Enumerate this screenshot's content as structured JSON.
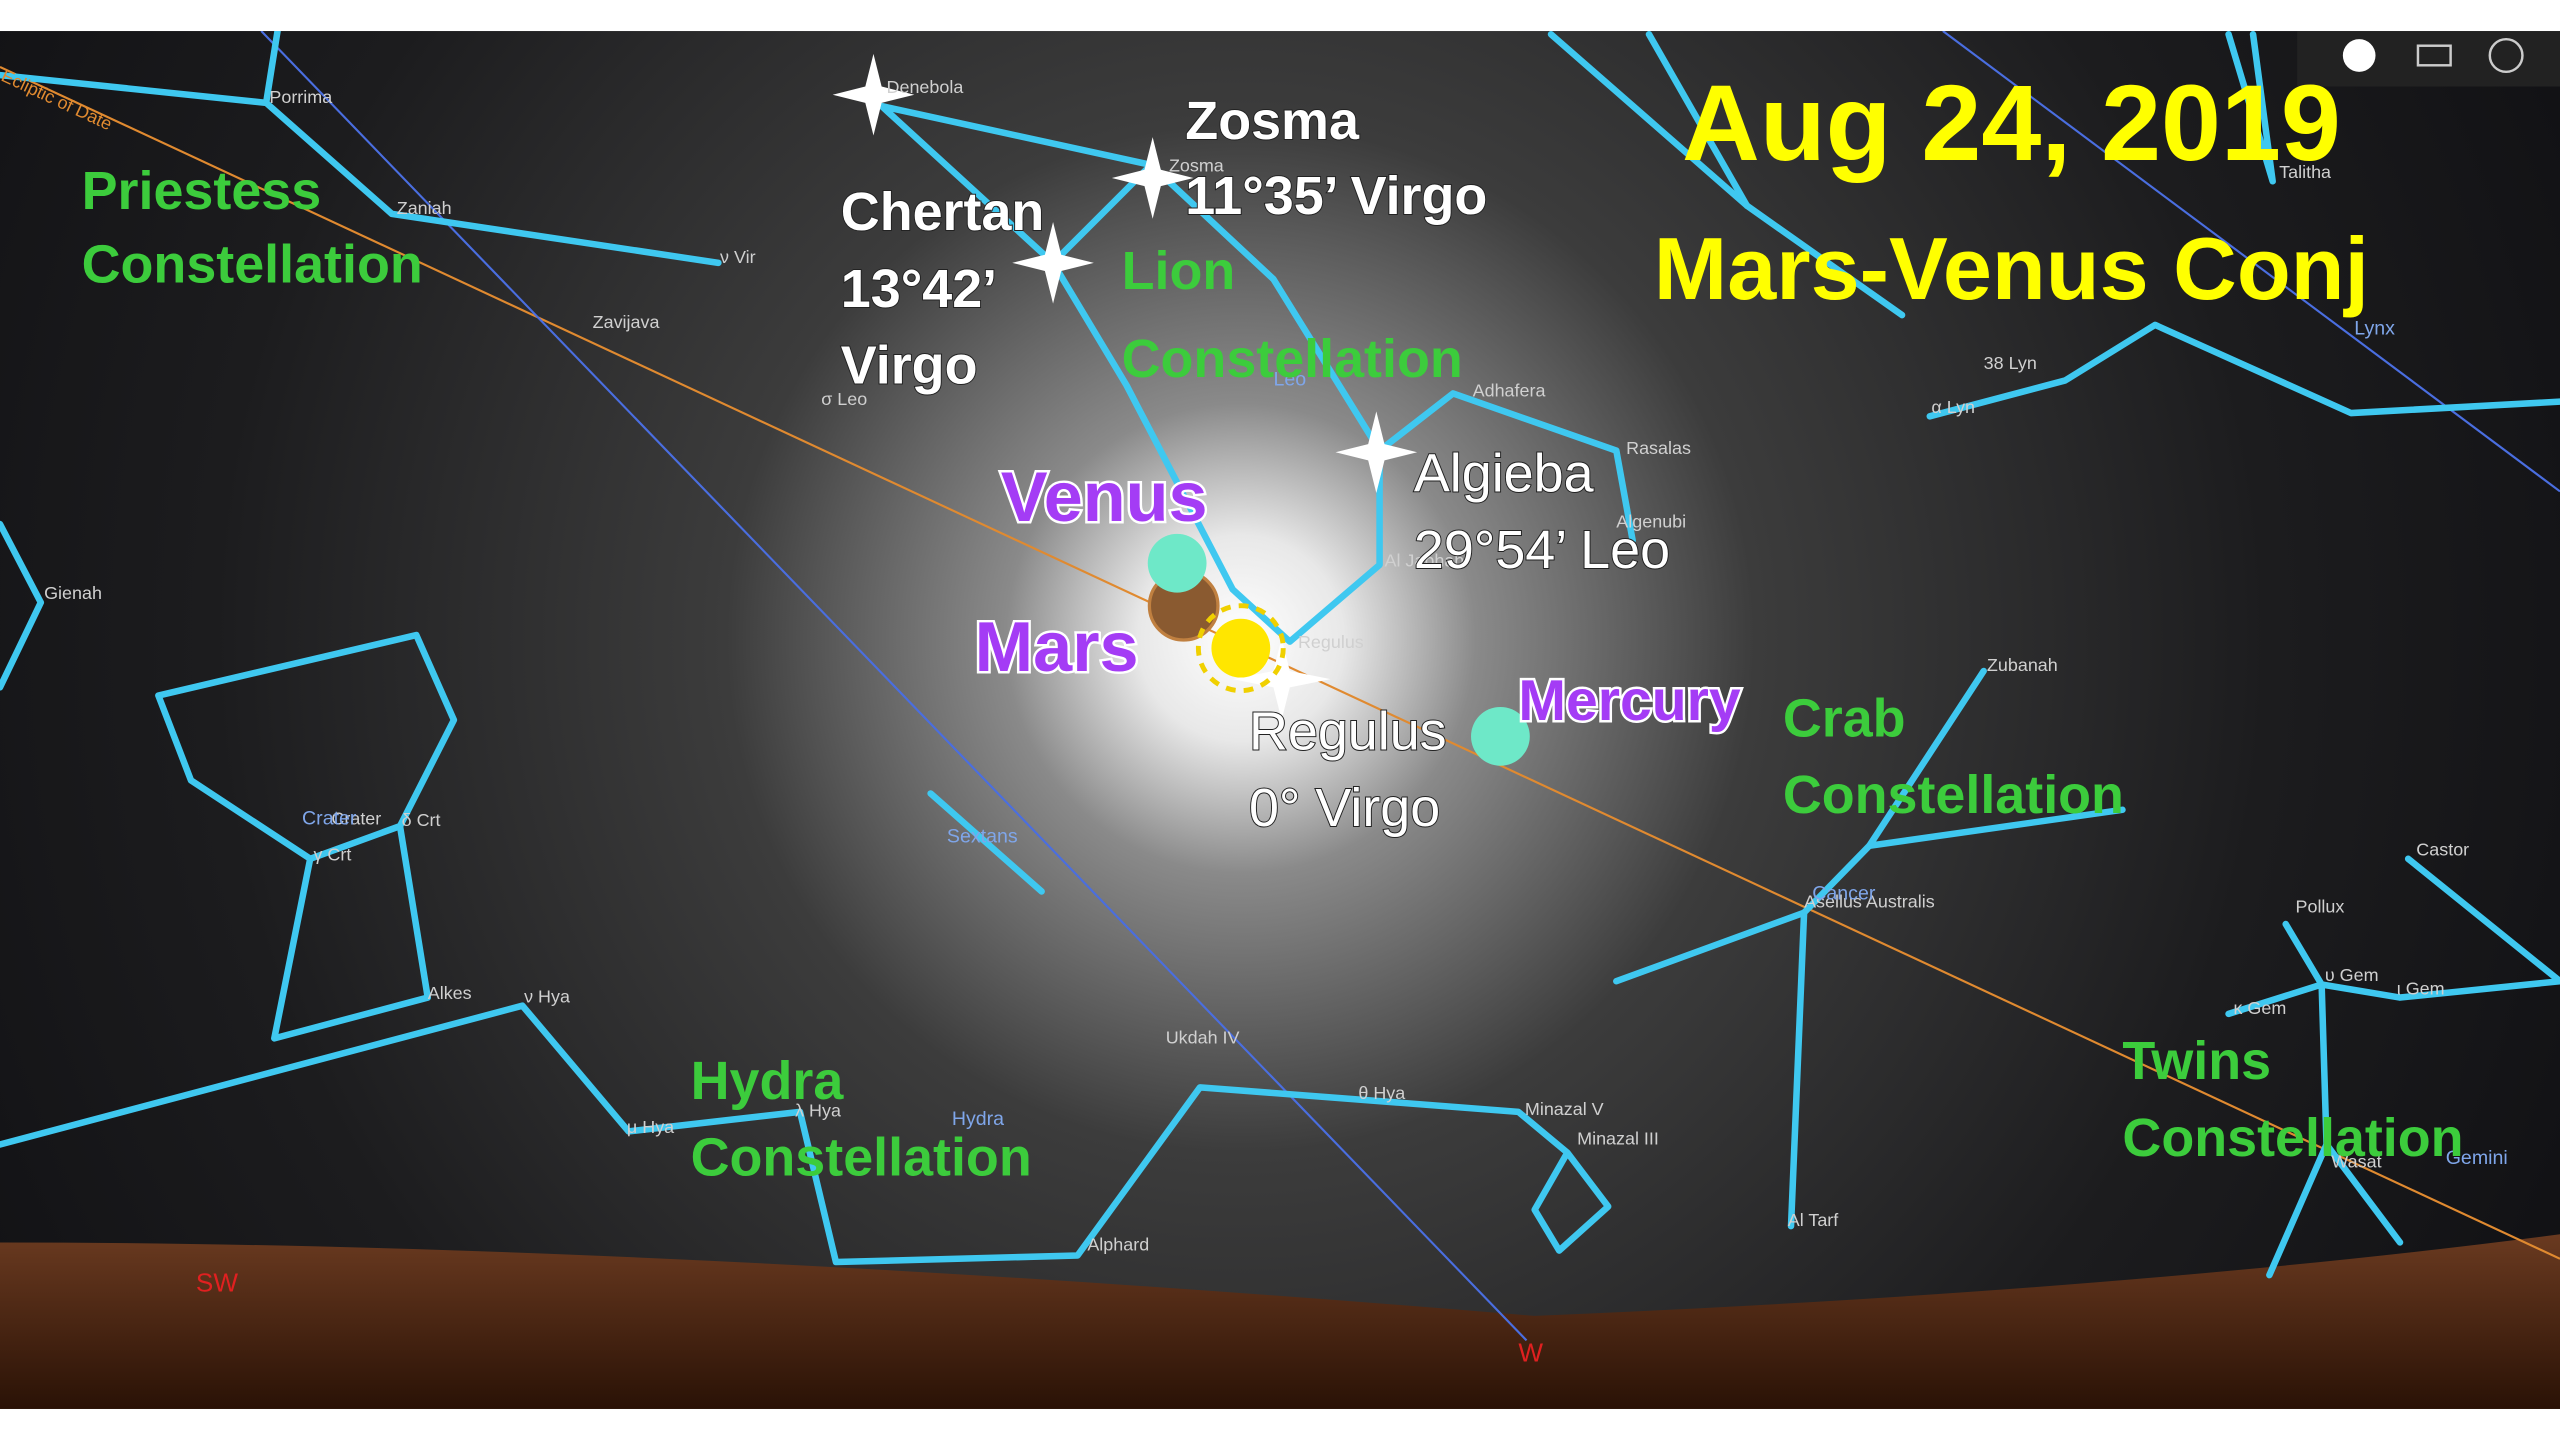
{
  "header": {
    "date": "Aug 24, 2019",
    "event": "Mars-Venus Conj"
  },
  "constellation_labels": [
    {
      "lines": [
        "Priestess",
        "Constellation"
      ]
    },
    {
      "lines": [
        "Lion",
        "Constellation"
      ]
    },
    {
      "lines": [
        "Crab",
        "Constellation"
      ]
    },
    {
      "lines": [
        "Hydra",
        "Constellation"
      ]
    },
    {
      "lines": [
        "Twins",
        "Constellation"
      ]
    }
  ],
  "planets": [
    "Venus",
    "Mars",
    "Mercury"
  ],
  "star_annotations": [
    {
      "lines": [
        "Chertan",
        "13°42’",
        "Virgo"
      ]
    },
    {
      "lines": [
        "Zosma",
        "11°35’ Virgo"
      ]
    },
    {
      "lines": [
        "Algieba",
        "29°54’ Leo"
      ]
    },
    {
      "lines": [
        "Regulus",
        "0° Virgo"
      ]
    }
  ],
  "sky_labels": [
    "Denebola",
    "Porrima",
    "Zaniah",
    "ν Vir",
    "Zavijava",
    "σ Leo",
    "Gienah",
    "Crater",
    "δ Crt",
    "γ Crt",
    "Alkes",
    "ν Hya",
    "μ Hya",
    "λ Hya",
    "Ukdah IV",
    "θ Hya",
    "Minazal V",
    "Minazal III",
    "Alphard",
    "Al Tarf",
    "Asellus Australis",
    "Zubanah",
    "Castor",
    "Pollux",
    "υ Gem",
    "κ Gem",
    "ι Gem",
    "Wasat",
    "38 Lyn",
    "α Lyn",
    "Talitha",
    "Adhafera",
    "Rasalas",
    "Algenubi",
    "Zosma",
    "Al Jabhah",
    "Regulus",
    "Ecliptic of Date"
  ],
  "constellation_names": [
    "Crater",
    "Hydra",
    "Sextans",
    "Leo",
    "Cancer",
    "Gemini",
    "Lynx"
  ],
  "compass": [
    "SW",
    "W"
  ]
}
